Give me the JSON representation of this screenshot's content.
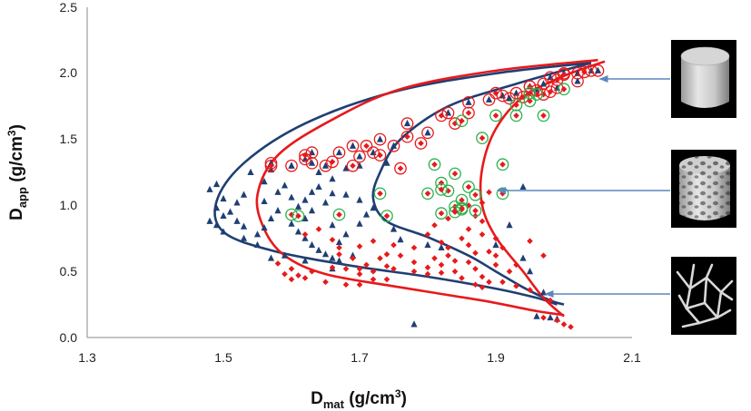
{
  "chart_data": {
    "type": "scatter",
    "title": "",
    "xlabel": {
      "main": "D",
      "sub": "mat",
      "rest": " (g/cm",
      "sup": "3",
      "close": ")"
    },
    "ylabel": {
      "main": "D",
      "sub": "app",
      "rest": " (g/cm",
      "sup": "3",
      "close": ")"
    },
    "xlim": [
      1.3,
      2.1
    ],
    "ylim": [
      0.0,
      2.5
    ],
    "xticks": [
      "1.3",
      "1.5",
      "1.7",
      "1.9",
      "2.1"
    ],
    "yticks": [
      "0.0",
      "0.5",
      "1.0",
      "1.5",
      "2.0",
      "2.5"
    ],
    "colors": {
      "blue": "#1f3f73",
      "red": "#e8191b",
      "green": "#2bb24c",
      "arrow": "#5b86c0",
      "circle_red": "#e8191b"
    },
    "series": [
      {
        "name": "blue triangles",
        "marker": "triangle",
        "points": [
          [
            1.49,
            1.16
          ],
          [
            1.48,
            1.12
          ],
          [
            1.5,
            1.05
          ],
          [
            1.49,
            0.98
          ],
          [
            1.5,
            0.92
          ],
          [
            1.48,
            0.88
          ],
          [
            1.49,
            0.85
          ],
          [
            1.5,
            0.8
          ],
          [
            1.51,
            0.95
          ],
          [
            1.52,
            1.02
          ],
          [
            1.53,
            1.08
          ],
          [
            1.52,
            0.88
          ],
          [
            1.53,
            0.84
          ],
          [
            1.55,
            0.78
          ],
          [
            1.56,
            0.83
          ],
          [
            1.57,
            0.9
          ],
          [
            1.58,
            0.96
          ],
          [
            1.56,
            1.03
          ],
          [
            1.58,
            1.1
          ],
          [
            1.59,
            1.15
          ],
          [
            1.6,
            1.06
          ],
          [
            1.61,
            0.99
          ],
          [
            1.62,
            1.04
          ],
          [
            1.63,
            1.1
          ],
          [
            1.64,
            1.14
          ],
          [
            1.66,
            1.09
          ],
          [
            1.65,
            1.02
          ],
          [
            1.63,
            0.96
          ],
          [
            1.62,
            0.9
          ],
          [
            1.6,
            0.86
          ],
          [
            1.61,
            0.8
          ],
          [
            1.62,
            0.75
          ],
          [
            1.63,
            0.7
          ],
          [
            1.64,
            0.66
          ],
          [
            1.65,
            0.63
          ],
          [
            1.66,
            0.6
          ],
          [
            1.67,
            0.58
          ],
          [
            1.69,
            0.62
          ],
          [
            1.68,
            0.78
          ],
          [
            1.7,
            0.86
          ],
          [
            1.71,
            0.93
          ],
          [
            1.72,
            0.98
          ],
          [
            1.7,
            1.04
          ],
          [
            1.68,
            1.08
          ],
          [
            1.66,
            0.85
          ],
          [
            1.67,
            0.72
          ],
          [
            1.75,
            0.82
          ],
          [
            1.76,
            0.74
          ],
          [
            1.8,
            0.7
          ],
          [
            1.82,
            0.68
          ],
          [
            1.78,
            0.1
          ],
          [
            1.66,
            0.52
          ],
          [
            1.96,
            0.16
          ],
          [
            1.98,
            0.15
          ],
          [
            1.99,
            0.14
          ],
          [
            1.97,
            0.34
          ],
          [
            1.95,
            0.5
          ],
          [
            1.94,
            0.6
          ],
          [
            1.9,
            0.7
          ],
          [
            1.92,
            0.85
          ],
          [
            1.94,
            1.14
          ],
          [
            1.56,
            1.18
          ],
          [
            1.54,
            1.25
          ],
          [
            1.57,
            1.27
          ],
          [
            1.66,
            1.2
          ],
          [
            1.68,
            1.28
          ],
          [
            1.7,
            1.3
          ],
          [
            1.74,
            1.32
          ],
          [
            1.62,
            0.58
          ],
          [
            1.59,
            0.62
          ],
          [
            1.57,
            0.6
          ],
          [
            1.55,
            0.7
          ],
          [
            1.53,
            0.75
          ],
          [
            1.6,
            1.3
          ],
          [
            1.64,
            1.25
          ]
        ]
      },
      {
        "name": "red diamonds",
        "marker": "diamond",
        "points": [
          [
            1.6,
            0.52
          ],
          [
            1.61,
            0.47
          ],
          [
            1.62,
            0.45
          ],
          [
            1.6,
            0.44
          ],
          [
            1.63,
            0.5
          ],
          [
            1.58,
            0.56
          ],
          [
            1.59,
            0.48
          ],
          [
            1.65,
            0.42
          ],
          [
            1.66,
            0.53
          ],
          [
            1.68,
            0.52
          ],
          [
            1.7,
            0.52
          ],
          [
            1.7,
            0.48
          ],
          [
            1.72,
            0.5
          ],
          [
            1.71,
            0.55
          ],
          [
            1.73,
            0.6
          ],
          [
            1.74,
            0.54
          ],
          [
            1.75,
            0.52
          ],
          [
            1.74,
            0.44
          ],
          [
            1.72,
            0.44
          ],
          [
            1.7,
            0.4
          ],
          [
            1.68,
            0.4
          ],
          [
            1.69,
            0.6
          ],
          [
            1.67,
            0.63
          ],
          [
            1.67,
            0.68
          ],
          [
            1.7,
            0.69
          ],
          [
            1.74,
            0.63
          ],
          [
            1.75,
            0.7
          ],
          [
            1.72,
            0.73
          ],
          [
            1.66,
            0.74
          ],
          [
            1.62,
            0.78
          ],
          [
            1.64,
            0.82
          ],
          [
            1.78,
            0.5
          ],
          [
            1.8,
            0.48
          ],
          [
            1.81,
            0.6
          ],
          [
            1.82,
            0.55
          ],
          [
            1.83,
            0.62
          ],
          [
            1.84,
            0.5
          ],
          [
            1.85,
            0.45
          ],
          [
            1.87,
            0.4
          ],
          [
            1.88,
            0.38
          ],
          [
            1.89,
            0.42
          ],
          [
            1.86,
            0.57
          ],
          [
            1.87,
            0.64
          ],
          [
            1.86,
            0.7
          ],
          [
            1.85,
            0.75
          ],
          [
            1.86,
            0.82
          ],
          [
            1.88,
            0.78
          ],
          [
            1.89,
            0.65
          ],
          [
            1.9,
            0.55
          ],
          [
            1.9,
            0.62
          ],
          [
            1.91,
            0.68
          ],
          [
            1.92,
            0.5
          ],
          [
            1.84,
            0.58
          ],
          [
            1.83,
            0.68
          ],
          [
            1.82,
            0.72
          ],
          [
            1.8,
            0.78
          ],
          [
            1.81,
            0.85
          ],
          [
            1.83,
            0.9
          ],
          [
            1.84,
            0.96
          ],
          [
            1.86,
            1.0
          ],
          [
            1.87,
            0.92
          ],
          [
            1.88,
            0.88
          ],
          [
            1.88,
            1.02
          ],
          [
            1.89,
            1.1
          ],
          [
            1.88,
            0.46
          ],
          [
            1.97,
            0.15
          ],
          [
            1.99,
            0.13
          ],
          [
            2.0,
            0.1
          ],
          [
            2.01,
            0.08
          ],
          [
            1.98,
            0.28
          ],
          [
            1.95,
            0.36
          ],
          [
            1.93,
            0.39
          ],
          [
            1.91,
            0.42
          ],
          [
            1.93,
            0.55
          ],
          [
            1.97,
            0.62
          ],
          [
            1.95,
            0.73
          ],
          [
            1.76,
            0.62
          ],
          [
            1.78,
            0.57
          ],
          [
            1.8,
            0.53
          ],
          [
            1.82,
            0.49
          ],
          [
            1.78,
            0.68
          ],
          [
            1.87,
            0.52
          ],
          [
            1.9,
            0.75
          ]
        ]
      },
      {
        "name": "blue triangles circled",
        "marker": "triangle",
        "ring": "red",
        "points": [
          [
            1.57,
            1.32
          ],
          [
            1.6,
            1.3
          ],
          [
            1.62,
            1.35
          ],
          [
            1.63,
            1.32
          ],
          [
            1.63,
            1.4
          ],
          [
            1.65,
            1.3
          ],
          [
            1.67,
            1.4
          ],
          [
            1.69,
            1.45
          ],
          [
            1.7,
            1.37
          ],
          [
            1.72,
            1.4
          ],
          [
            1.73,
            1.5
          ],
          [
            1.75,
            1.45
          ],
          [
            1.77,
            1.62
          ],
          [
            1.8,
            1.55
          ],
          [
            1.83,
            1.7
          ],
          [
            1.89,
            1.8
          ],
          [
            1.91,
            1.83
          ],
          [
            1.93,
            1.85
          ],
          [
            1.95,
            1.9
          ],
          [
            1.97,
            1.92
          ],
          [
            1.98,
            1.97
          ],
          [
            2.0,
            2.0
          ],
          [
            2.02,
            2.0
          ],
          [
            2.04,
            2.02
          ],
          [
            2.05,
            2.02
          ],
          [
            2.02,
            1.94
          ],
          [
            1.99,
            1.89
          ],
          [
            1.96,
            1.87
          ],
          [
            1.92,
            1.81
          ],
          [
            1.86,
            1.78
          ]
        ]
      },
      {
        "name": "red diamonds circled red",
        "marker": "diamond",
        "ring": "red",
        "points": [
          [
            1.57,
            1.3
          ],
          [
            1.62,
            1.38
          ],
          [
            1.66,
            1.33
          ],
          [
            1.69,
            1.3
          ],
          [
            1.73,
            1.38
          ],
          [
            1.76,
            1.28
          ],
          [
            1.71,
            1.45
          ],
          [
            1.77,
            1.52
          ],
          [
            1.79,
            1.47
          ],
          [
            1.82,
            1.68
          ],
          [
            1.84,
            1.62
          ],
          [
            1.86,
            1.7
          ],
          [
            1.9,
            1.85
          ],
          [
            1.94,
            1.82
          ],
          [
            1.97,
            1.84
          ],
          [
            1.98,
            1.86
          ],
          [
            1.99,
            1.95
          ],
          [
            2.03,
            2.01
          ],
          [
            2.0,
            1.99
          ],
          [
            1.95,
            1.9
          ]
        ]
      },
      {
        "name": "red diamonds circled green",
        "marker": "diamond",
        "ring": "green",
        "points": [
          [
            1.6,
            0.93
          ],
          [
            1.61,
            0.92
          ],
          [
            1.67,
            0.93
          ],
          [
            1.73,
            1.09
          ],
          [
            1.74,
            0.92
          ],
          [
            1.8,
            1.09
          ],
          [
            1.82,
            0.94
          ],
          [
            1.82,
            1.17
          ],
          [
            1.83,
            1.11
          ],
          [
            1.84,
            1.24
          ],
          [
            1.85,
            1.04
          ],
          [
            1.85,
            0.98
          ],
          [
            1.86,
            1.14
          ],
          [
            1.87,
            1.08
          ],
          [
            1.84,
            0.99
          ],
          [
            1.81,
            1.31
          ],
          [
            1.82,
            1.12
          ],
          [
            1.85,
            0.97
          ],
          [
            1.84,
            0.95
          ],
          [
            1.87,
            0.96
          ],
          [
            1.88,
            1.51
          ],
          [
            1.9,
            1.68
          ],
          [
            1.91,
            1.31
          ],
          [
            1.91,
            1.09
          ],
          [
            1.85,
            1.64
          ],
          [
            1.93,
            1.76
          ],
          [
            1.95,
            1.79
          ],
          [
            1.96,
            1.84
          ],
          [
            1.95,
            1.85
          ],
          [
            1.97,
            1.68
          ],
          [
            2.0,
            1.88
          ],
          [
            1.93,
            1.68
          ]
        ]
      }
    ],
    "curves": [
      {
        "name": "blue envelope outer",
        "color": "blue",
        "points": [
          [
            2.04,
            2.08
          ],
          [
            1.9,
            2.0
          ],
          [
            1.75,
            1.86
          ],
          [
            1.62,
            1.62
          ],
          [
            1.53,
            1.32
          ],
          [
            1.49,
            1.03
          ],
          [
            1.5,
            0.8
          ],
          [
            1.57,
            0.66
          ],
          [
            1.68,
            0.55
          ],
          [
            1.8,
            0.46
          ],
          [
            1.9,
            0.37
          ],
          [
            1.96,
            0.3
          ],
          [
            1.99,
            0.25
          ]
        ]
      },
      {
        "name": "blue envelope inner",
        "color": "blue",
        "points": [
          [
            2.04,
            2.08
          ],
          [
            1.93,
            1.92
          ],
          [
            1.83,
            1.75
          ],
          [
            1.76,
            1.5
          ],
          [
            1.73,
            1.25
          ],
          [
            1.72,
            1.05
          ],
          [
            1.74,
            0.88
          ],
          [
            1.8,
            0.76
          ],
          [
            1.86,
            0.62
          ],
          [
            1.9,
            0.5
          ],
          [
            1.94,
            0.38
          ],
          [
            1.98,
            0.28
          ],
          [
            2.0,
            0.25
          ]
        ]
      },
      {
        "name": "red envelope outer",
        "color": "red",
        "points": [
          [
            2.05,
            2.1
          ],
          [
            1.9,
            2.02
          ],
          [
            1.76,
            1.88
          ],
          [
            1.66,
            1.65
          ],
          [
            1.58,
            1.38
          ],
          [
            1.55,
            1.08
          ],
          [
            1.56,
            0.82
          ],
          [
            1.59,
            0.62
          ],
          [
            1.65,
            0.48
          ],
          [
            1.76,
            0.38
          ],
          [
            1.88,
            0.28
          ],
          [
            1.96,
            0.2
          ],
          [
            2.0,
            0.17
          ]
        ]
      },
      {
        "name": "red envelope inner",
        "color": "red",
        "points": [
          [
            2.06,
            2.09
          ],
          [
            2.0,
            1.98
          ],
          [
            1.94,
            1.82
          ],
          [
            1.9,
            1.58
          ],
          [
            1.88,
            1.28
          ],
          [
            1.88,
            1.0
          ],
          [
            1.9,
            0.76
          ],
          [
            1.94,
            0.5
          ],
          [
            1.97,
            0.3
          ],
          [
            2.0,
            0.16
          ]
        ]
      }
    ],
    "annotations": [
      {
        "name": "arrow-to-solid",
        "target_y": 1.95,
        "thumb": "solid"
      },
      {
        "name": "arrow-to-porous",
        "target_y": 1.1,
        "thumb": "porous"
      },
      {
        "name": "arrow-to-trabecular",
        "target_y": 0.33,
        "thumb": "trabecular"
      }
    ]
  }
}
